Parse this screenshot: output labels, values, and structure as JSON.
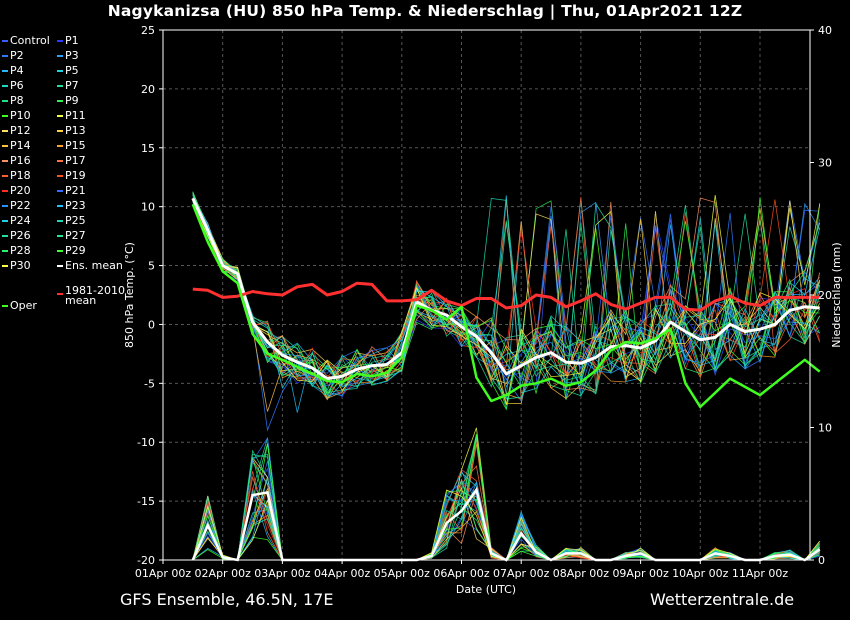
{
  "title": "Nagykanizsa  (HU)  850 hPa Temp. & Niederschlag | Thu, 01Apr2021 12Z",
  "footer": {
    "left": "GFS Ensemble, 46.5N, 17E",
    "right": "Wetterzentrale.de"
  },
  "legend": [
    {
      "label": "Control",
      "color": "#3a5cff"
    },
    {
      "label": "P1",
      "color": "#2a3cff"
    },
    {
      "label": "P2",
      "color": "#2f7bff"
    },
    {
      "label": "P3",
      "color": "#2aa0ff"
    },
    {
      "label": "P4",
      "color": "#26b8ff"
    },
    {
      "label": "P5",
      "color": "#22d0e0"
    },
    {
      "label": "P6",
      "color": "#20d8c0"
    },
    {
      "label": "P7",
      "color": "#20e0a0"
    },
    {
      "label": "P8",
      "color": "#20e080"
    },
    {
      "label": "P9",
      "color": "#30f050"
    },
    {
      "label": "P10",
      "color": "#40ff20"
    },
    {
      "label": "P11",
      "color": "#f0ff40"
    },
    {
      "label": "P12",
      "color": "#ffe060"
    },
    {
      "label": "P13",
      "color": "#ffd040"
    },
    {
      "label": "P14",
      "color": "#ffc040"
    },
    {
      "label": "P15",
      "color": "#ffa030"
    },
    {
      "label": "P16",
      "color": "#ff9060"
    },
    {
      "label": "P17",
      "color": "#ff7040"
    },
    {
      "label": "P18",
      "color": "#ff6030"
    },
    {
      "label": "P19",
      "color": "#ff5020"
    },
    {
      "label": "P20",
      "color": "#ff3020"
    },
    {
      "label": "P21",
      "color": "#3070ff"
    },
    {
      "label": "P22",
      "color": "#2a90ff"
    },
    {
      "label": "P23",
      "color": "#20c0ff"
    },
    {
      "label": "P24",
      "color": "#20d0e8"
    },
    {
      "label": "P25",
      "color": "#20d8b0"
    },
    {
      "label": "P26",
      "color": "#20e0a0"
    },
    {
      "label": "P27",
      "color": "#20e890"
    },
    {
      "label": "P28",
      "color": "#30f070"
    },
    {
      "label": "P29",
      "color": "#40ff30"
    },
    {
      "label": "P30",
      "color": "#ffff40"
    },
    {
      "label": "Ens. mean",
      "color": "#ffffff"
    },
    {
      "label": "Oper",
      "color": "#40ff20"
    },
    {
      "label": "1981-2010 mean",
      "color": "#ff3030"
    }
  ],
  "chart_data": {
    "type": "line",
    "xlabel": "Date (UTC)",
    "ylabel": "850 hPa Temp. (°C)",
    "ylabel_right": "Niederschlag (mm)",
    "ylim": [
      -20,
      25
    ],
    "ylim_right": [
      0,
      40
    ],
    "yticks": [
      -20,
      -15,
      -10,
      -5,
      0,
      5,
      10,
      15,
      20,
      25
    ],
    "yticks_right": [
      0,
      10,
      20,
      30,
      40
    ],
    "x_range_hours": [
      0,
      240
    ],
    "xticks": [
      {
        "hour": 0,
        "label": "01Apr 00z"
      },
      {
        "hour": 24,
        "label": "02Apr 00z"
      },
      {
        "hour": 48,
        "label": "03Apr 00z"
      },
      {
        "hour": 72,
        "label": "04Apr 00z"
      },
      {
        "hour": 96,
        "label": "05Apr 00z"
      },
      {
        "hour": 120,
        "label": "06Apr 00z"
      },
      {
        "hour": 144,
        "label": "07Apr 00z"
      },
      {
        "hour": 168,
        "label": "08Apr 00z"
      },
      {
        "hour": 192,
        "label": "09Apr 00z"
      },
      {
        "hour": 216,
        "label": "10Apr 00z"
      },
      {
        "hour": 240,
        "label": "11Apr 00z"
      }
    ],
    "grid": true,
    "legend_position": "left",
    "series": [
      {
        "name": "Ens. mean",
        "color": "#ffffff",
        "x": [
          12,
          18,
          24,
          30,
          36,
          42,
          48,
          54,
          60,
          66,
          72,
          78,
          84,
          90,
          96,
          102,
          108,
          114,
          120,
          126,
          132,
          138,
          144,
          150,
          156,
          162,
          168,
          174,
          180,
          186,
          192,
          198,
          204,
          210,
          216,
          222,
          228,
          234,
          240,
          246,
          252,
          258,
          264
        ],
        "y": [
          10.7,
          8.0,
          5.0,
          4.3,
          0.2,
          -1.5,
          -2.6,
          -3.2,
          -3.7,
          -4.6,
          -4.4,
          -3.8,
          -3.5,
          -3.4,
          -2.4,
          1.9,
          1.2,
          0.8,
          -0.2,
          -1.0,
          -2.4,
          -4.2,
          -3.5,
          -2.8,
          -2.4,
          -3.2,
          -3.3,
          -2.8,
          -1.9,
          -1.8,
          -2.0,
          -1.4,
          0.2,
          -0.6,
          -1.3,
          -1.1,
          0.0,
          -0.6,
          -0.4,
          0.0,
          1.2,
          1.5,
          1.4
        ]
      },
      {
        "name": "1981-2010 mean",
        "color": "#ff3030",
        "x": [
          12,
          18,
          24,
          30,
          36,
          42,
          48,
          54,
          60,
          66,
          72,
          78,
          84,
          90,
          96,
          102,
          108,
          114,
          120,
          126,
          132,
          138,
          144,
          150,
          156,
          162,
          168,
          174,
          180,
          186,
          192,
          198,
          204,
          210,
          216,
          222,
          228,
          234,
          240,
          246,
          252,
          258,
          264
        ],
        "y": [
          3.0,
          2.9,
          2.3,
          2.4,
          2.8,
          2.6,
          2.5,
          3.2,
          3.4,
          2.5,
          2.8,
          3.5,
          3.4,
          2.0,
          2.0,
          2.1,
          2.9,
          2.0,
          1.6,
          2.2,
          2.2,
          1.4,
          1.6,
          2.5,
          2.3,
          1.5,
          2.0,
          2.6,
          1.7,
          1.3,
          1.8,
          2.3,
          2.3,
          1.3,
          1.2,
          2.0,
          2.4,
          1.8,
          1.6,
          2.3,
          2.3,
          2.3,
          2.3
        ]
      },
      {
        "name": "Oper",
        "color": "#40ff20",
        "x": [
          12,
          18,
          24,
          30,
          36,
          42,
          48,
          54,
          60,
          66,
          72,
          78,
          84,
          90,
          96,
          102,
          108,
          114,
          120,
          126,
          132,
          138,
          144,
          150,
          156,
          162,
          168,
          174,
          180,
          186,
          192,
          198,
          204,
          210,
          216,
          222,
          228,
          234,
          240,
          246,
          252,
          258,
          264
        ],
        "y": [
          10.2,
          7.0,
          4.5,
          3.5,
          -0.8,
          -2.5,
          -3.0,
          -3.6,
          -4.2,
          -4.8,
          -4.9,
          -4.2,
          -4.4,
          -4.1,
          -2.8,
          1.6,
          1.2,
          0.4,
          1.5,
          -4.5,
          -6.5,
          -6.0,
          -5.2,
          -5.0,
          -4.6,
          -5.2,
          -4.9,
          -3.9,
          -2.2,
          -1.5,
          -1.6,
          -1.2,
          -0.4,
          -5.0,
          -7.0,
          -5.8,
          -4.6,
          -5.3,
          -6.0,
          -5.0,
          -4.0,
          -3.0,
          -4.0
        ]
      }
    ],
    "precipitation": {
      "name": "Niederschlag",
      "color": "#40ff20",
      "x": [
        12,
        18,
        24,
        30,
        36,
        42,
        48,
        54,
        60,
        66,
        72,
        78,
        84,
        90,
        96,
        102,
        108,
        114,
        120,
        126,
        132,
        138,
        144,
        150,
        156,
        162,
        168,
        174,
        180,
        186,
        192,
        198,
        204,
        210,
        216,
        222,
        228,
        234,
        240,
        246,
        252,
        258,
        264
      ],
      "mean_mm": [
        0.0,
        2.6,
        0.2,
        0.0,
        4.9,
        5.1,
        0.0,
        0.0,
        0.0,
        0.0,
        0.0,
        0.0,
        0.0,
        0.0,
        0.0,
        0.0,
        0.3,
        2.8,
        3.7,
        5.3,
        0.5,
        0.0,
        2.0,
        0.6,
        0.0,
        0.5,
        0.5,
        0.0,
        0.0,
        0.3,
        0.5,
        0.0,
        0.0,
        0.0,
        0.0,
        0.5,
        0.3,
        0.0,
        0.0,
        0.3,
        0.4,
        0.0,
        0.8
      ]
    }
  }
}
